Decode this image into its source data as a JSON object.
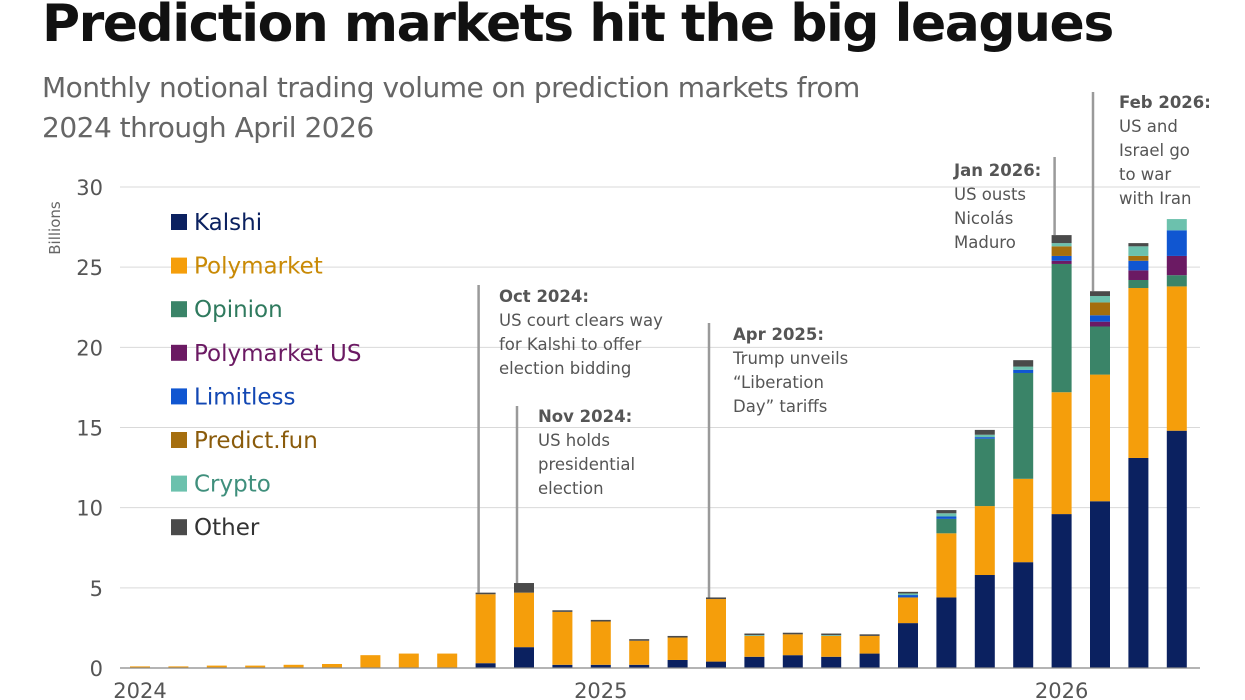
{
  "title": "Prediction markets hit the big leagues",
  "subtitle": "Monthly notional trading volume on prediction markets from 2024 through April 2026",
  "chart_data": {
    "type": "bar",
    "stacked": true,
    "ylabel": "Billions",
    "ylim": [
      0,
      30
    ],
    "yticks": [
      0,
      5,
      10,
      15,
      20,
      25,
      30
    ],
    "grid": true,
    "legend_position": "top-left",
    "x_tick_labels": [
      {
        "label": "2024",
        "month": "Jan 2024"
      },
      {
        "label": "2025",
        "month": "Jan 2025"
      },
      {
        "label": "2026",
        "month": "Jan 2026"
      }
    ],
    "categories": [
      "Jan 2024",
      "Feb 2024",
      "Mar 2024",
      "Apr 2024",
      "May 2024",
      "Jun 2024",
      "Jul 2024",
      "Aug 2024",
      "Sep 2024",
      "Oct 2024",
      "Nov 2024",
      "Dec 2024",
      "Jan 2025",
      "Feb 2025",
      "Mar 2025",
      "Apr 2025",
      "May 2025",
      "Jun 2025",
      "Jul 2025",
      "Aug 2025",
      "Sep 2025",
      "Oct 2025",
      "Nov 2025",
      "Dec 2025",
      "Jan 2026",
      "Feb 2026",
      "Mar 2026",
      "Apr 2026"
    ],
    "series": [
      {
        "name": "Kalshi",
        "color": "#0b2160",
        "values": [
          0,
          0,
          0,
          0,
          0,
          0,
          0,
          0,
          0,
          0.3,
          1.3,
          0.2,
          0.2,
          0.2,
          0.5,
          0.4,
          0.7,
          0.8,
          0.7,
          0.9,
          2.8,
          4.4,
          5.8,
          6.6,
          9.6,
          10.4,
          13.1,
          14.8
        ]
      },
      {
        "name": "Polymarket",
        "color": "#f59e0b",
        "values": [
          0.1,
          0.1,
          0.15,
          0.15,
          0.2,
          0.25,
          0.8,
          0.9,
          0.9,
          4.3,
          3.4,
          3.3,
          2.7,
          1.5,
          1.4,
          3.9,
          1.3,
          1.3,
          1.3,
          1.1,
          1.6,
          4.0,
          4.3,
          5.2,
          7.6,
          7.9,
          10.6,
          9.0
        ]
      },
      {
        "name": "Opinion",
        "color": "#3a8468",
        "values": [
          0,
          0,
          0,
          0,
          0,
          0,
          0,
          0,
          0,
          0,
          0,
          0,
          0,
          0,
          0,
          0,
          0,
          0,
          0,
          0,
          0,
          0.9,
          4.2,
          6.6,
          8.0,
          3.0,
          0.5,
          0.7
        ]
      },
      {
        "name": "Polymarket US",
        "color": "#6b1a63",
        "values": [
          0,
          0,
          0,
          0,
          0,
          0,
          0,
          0,
          0,
          0,
          0,
          0,
          0,
          0,
          0,
          0,
          0,
          0,
          0,
          0,
          0,
          0,
          0,
          0,
          0.2,
          0.3,
          0.6,
          1.2
        ]
      },
      {
        "name": "Limitless",
        "color": "#1056d1",
        "values": [
          0,
          0,
          0,
          0,
          0,
          0,
          0,
          0,
          0,
          0,
          0,
          0,
          0,
          0,
          0,
          0,
          0,
          0,
          0,
          0,
          0.15,
          0.15,
          0.1,
          0.2,
          0.3,
          0.4,
          0.6,
          1.6
        ]
      },
      {
        "name": "Predict.fun",
        "color": "#a56e0e",
        "values": [
          0,
          0,
          0,
          0,
          0,
          0,
          0,
          0,
          0,
          0,
          0,
          0,
          0,
          0,
          0,
          0,
          0,
          0,
          0,
          0,
          0,
          0,
          0,
          0,
          0.6,
          0.8,
          0.3,
          0
        ]
      },
      {
        "name": "Crypto",
        "color": "#6cc1ad",
        "values": [
          0,
          0,
          0,
          0,
          0,
          0,
          0,
          0,
          0,
          0,
          0,
          0,
          0,
          0,
          0,
          0,
          0.05,
          0,
          0.05,
          0,
          0.1,
          0.2,
          0.15,
          0.2,
          0.2,
          0.4,
          0.6,
          0.7
        ]
      },
      {
        "name": "Other",
        "color": "#4a4a4a",
        "values": [
          0,
          0,
          0,
          0,
          0,
          0,
          0,
          0,
          0,
          0.1,
          0.6,
          0.1,
          0.1,
          0.1,
          0.1,
          0.1,
          0.1,
          0.1,
          0.1,
          0.1,
          0.1,
          0.2,
          0.3,
          0.4,
          0.5,
          0.3,
          0.2,
          0
        ]
      }
    ],
    "annotations": [
      {
        "month": "Oct 2024",
        "title": "Oct 2024:",
        "lines": [
          "US court clears way",
          "for Kalshi to offer",
          "election bidding"
        ]
      },
      {
        "month": "Nov 2024",
        "title": "Nov 2024:",
        "lines": [
          "US holds",
          "presidential",
          "election"
        ]
      },
      {
        "month": "Apr 2025",
        "title": "Apr 2025:",
        "lines": [
          "Trump unveils",
          "“Liberation",
          "Day” tariffs"
        ]
      },
      {
        "month": "Jan 2026",
        "title": "Jan 2026:",
        "lines": [
          "US ousts",
          "Nicolás",
          "Maduro"
        ]
      },
      {
        "month": "Feb 2026",
        "title": "Feb 2026:",
        "lines": [
          "US and",
          "Israel go",
          "to war",
          "with Iran"
        ]
      }
    ]
  }
}
